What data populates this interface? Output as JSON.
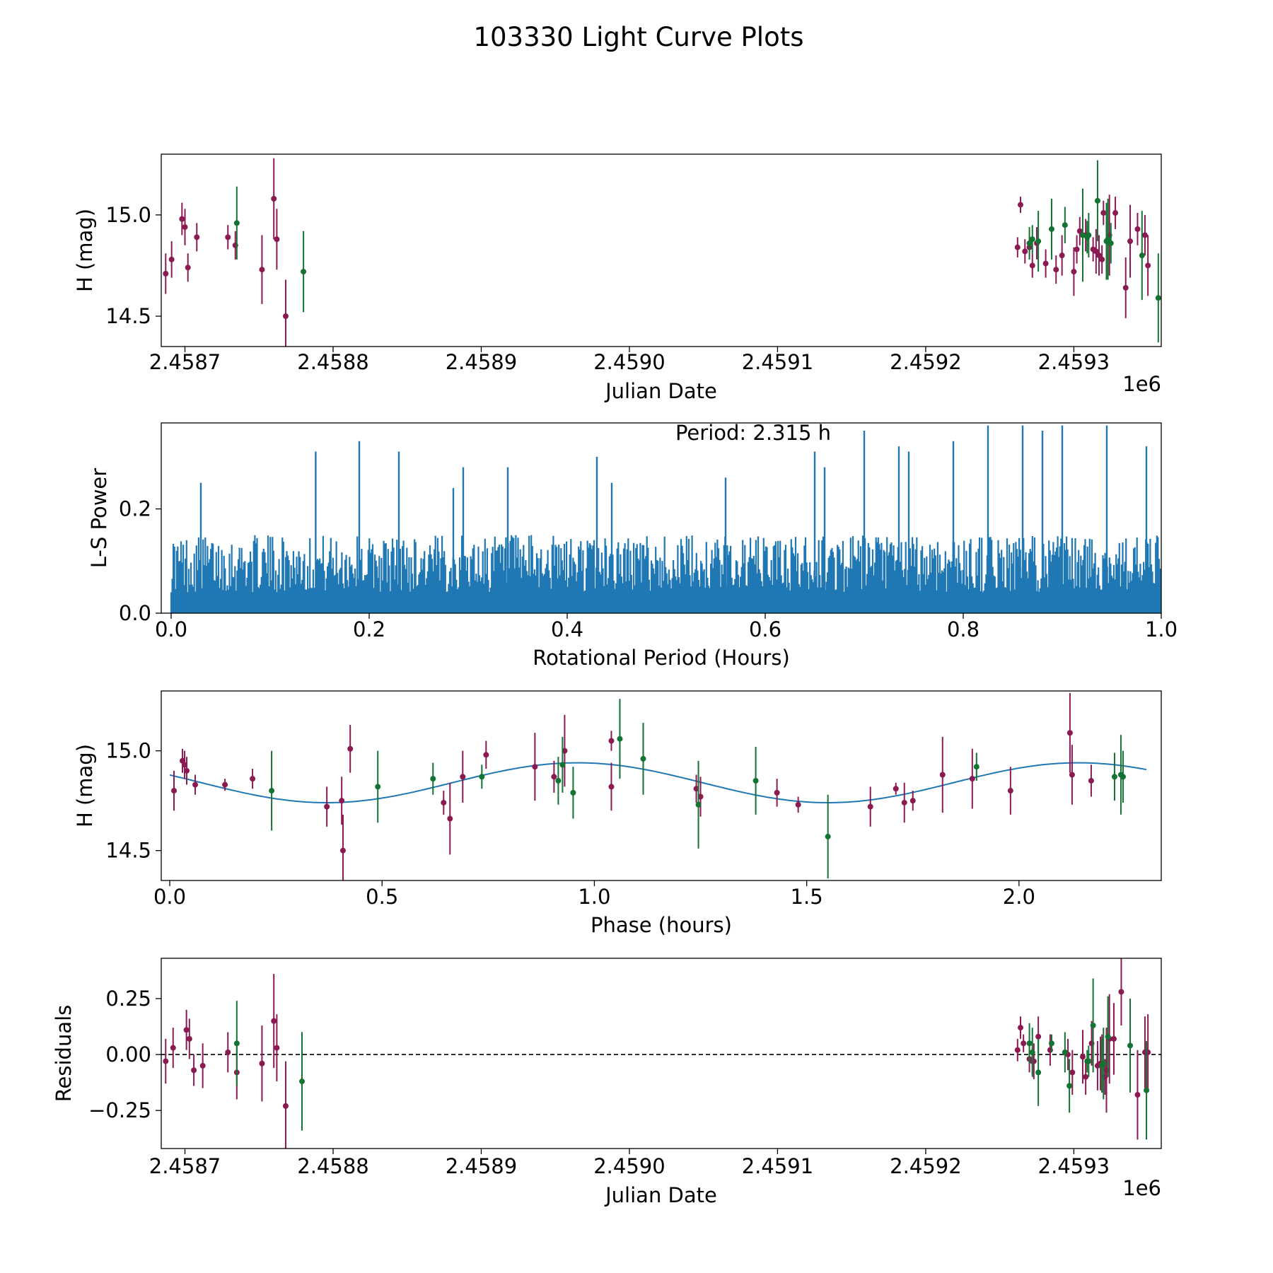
{
  "figure": {
    "title": "103330 Light Curve Plots",
    "colors": {
      "red": "#8c1a52",
      "green": "#127333",
      "fit": "#1f77b4",
      "periodogram": "#1f77b4"
    }
  },
  "chart_data": [
    {
      "id": "lightcurve",
      "type": "scatter",
      "xlabel": "Julian Date",
      "ylabel": "H (mag)",
      "x_offset_label": "1e6",
      "xlim": [
        2.458684,
        2.459359
      ],
      "ylim": [
        14.35,
        15.3
      ],
      "xticks": [
        2.4587,
        2.4588,
        2.4589,
        2.459,
        2.4591,
        2.4592,
        2.4593
      ],
      "xtick_labels": [
        "2.4587",
        "2.4588",
        "2.4589",
        "2.4590",
        "2.4591",
        "2.4592",
        "2.4593"
      ],
      "yticks": [
        14.5,
        15.0
      ],
      "ytick_labels": [
        "14.5",
        "15.0"
      ],
      "series": [
        {
          "name": "red",
          "x": [
            2.458687,
            2.458691,
            2.458698,
            2.4587,
            2.458702,
            2.458708,
            2.458729,
            2.458734,
            2.458752,
            2.45876,
            2.458762,
            2.458768,
            2.459262,
            2.459264,
            2.459267,
            2.45927,
            2.459272,
            2.459275,
            2.459281,
            2.459288,
            2.459292,
            2.4593,
            2.459302,
            2.459304,
            2.459308,
            2.459313,
            2.459315,
            2.459317,
            2.459319,
            2.45932,
            2.459324,
            2.459328,
            2.459335,
            2.459338,
            2.459343,
            2.459348,
            2.45935
          ],
          "y": [
            14.71,
            14.78,
            14.98,
            14.94,
            14.74,
            14.89,
            14.89,
            14.85,
            14.73,
            15.08,
            14.88,
            14.5,
            14.84,
            15.05,
            14.82,
            14.84,
            14.75,
            14.86,
            14.76,
            14.73,
            14.8,
            14.72,
            14.83,
            14.92,
            14.9,
            14.83,
            14.82,
            14.8,
            14.78,
            15.01,
            14.9,
            15.01,
            14.64,
            14.87,
            14.93,
            14.9,
            14.75
          ],
          "err": [
            0.1,
            0.09,
            0.08,
            0.09,
            0.07,
            0.07,
            0.06,
            0.07,
            0.17,
            0.2,
            0.15,
            0.18,
            0.05,
            0.04,
            0.06,
            0.06,
            0.06,
            0.08,
            0.07,
            0.07,
            0.1,
            0.12,
            0.07,
            0.07,
            0.08,
            0.06,
            0.11,
            0.1,
            0.07,
            0.06,
            0.2,
            0.08,
            0.15,
            0.18,
            0.08,
            0.1,
            0.15
          ]
        },
        {
          "name": "green",
          "x": [
            2.458735,
            2.45878,
            2.45927,
            2.459272,
            2.459276,
            2.459285,
            2.459294,
            2.459306,
            2.459309,
            2.45931,
            2.459316,
            2.459322,
            2.459323,
            2.459325,
            2.459346,
            2.459357
          ],
          "y": [
            14.96,
            14.72,
            14.86,
            14.88,
            14.87,
            14.93,
            14.95,
            14.9,
            14.89,
            14.9,
            15.07,
            14.87,
            14.88,
            14.86,
            14.8,
            14.59
          ],
          "err": [
            0.18,
            0.2,
            0.08,
            0.07,
            0.15,
            0.15,
            0.09,
            0.23,
            0.08,
            0.11,
            0.2,
            0.19,
            0.2,
            0.1,
            0.22,
            0.22
          ]
        }
      ]
    },
    {
      "id": "periodogram",
      "type": "line",
      "xlabel": "Rotational Period (Hours)",
      "ylabel": "L-S Power",
      "annotation": "Period: 2.315 h",
      "xlim": [
        -0.01,
        1.0
      ],
      "ylim": [
        0.0,
        0.365
      ],
      "xticks": [
        0.0,
        0.2,
        0.4,
        0.6,
        0.8,
        1.0
      ],
      "xtick_labels": [
        "0.0",
        "0.2",
        "0.4",
        "0.6",
        "0.8",
        "1.0"
      ],
      "yticks": [
        0.0,
        0.2
      ],
      "ytick_labels": [
        "0.0",
        "0.2"
      ],
      "x_range": [
        0.0,
        1.0
      ],
      "num_samples": 900,
      "baseline_power": 0.04,
      "typical_max_power": 0.15,
      "peak_x": [
        0.03,
        0.146,
        0.19,
        0.23,
        0.285,
        0.295,
        0.34,
        0.43,
        0.445,
        0.56,
        0.65,
        0.66,
        0.7,
        0.735,
        0.745,
        0.79,
        0.825,
        0.86,
        0.88,
        0.9,
        0.945,
        0.985
      ],
      "peak_power": [
        0.25,
        0.31,
        0.33,
        0.31,
        0.24,
        0.28,
        0.28,
        0.3,
        0.25,
        0.26,
        0.31,
        0.28,
        0.35,
        0.32,
        0.31,
        0.33,
        0.36,
        0.36,
        0.35,
        0.36,
        0.36,
        0.32
      ]
    },
    {
      "id": "phased",
      "type": "scatter",
      "xlabel": "Phase (hours)",
      "ylabel": "H (mag)",
      "xlim": [
        -0.02,
        2.335
      ],
      "ylim": [
        14.35,
        15.3
      ],
      "xticks": [
        0.0,
        0.5,
        1.0,
        1.5,
        2.0
      ],
      "xtick_labels": [
        "0.0",
        "0.5",
        "1.0",
        "1.5",
        "2.0"
      ],
      "yticks": [
        14.5,
        15.0
      ],
      "ytick_labels": [
        "14.5",
        "15.0"
      ],
      "fit": {
        "period": 1.18,
        "mean": 14.84,
        "amplitude": 0.1,
        "phase_peak": 0.96,
        "x_range": [
          0.0,
          2.3
        ]
      },
      "series": [
        {
          "name": "red",
          "x": [
            0.01,
            0.03,
            0.035,
            0.04,
            0.06,
            0.13,
            0.195,
            0.37,
            0.405,
            0.408,
            0.425,
            0.645,
            0.66,
            0.69,
            0.745,
            0.86,
            0.905,
            0.93,
            1.04,
            1.04,
            1.24,
            1.25,
            1.43,
            1.48,
            1.65,
            1.71,
            1.73,
            1.75,
            1.82,
            1.89,
            1.98,
            2.12,
            2.125,
            2.17
          ],
          "y": [
            14.8,
            14.95,
            14.93,
            14.9,
            14.83,
            14.83,
            14.86,
            14.72,
            14.75,
            14.5,
            15.01,
            14.74,
            14.66,
            14.87,
            14.98,
            14.92,
            14.87,
            15.0,
            14.82,
            15.05,
            14.81,
            14.77,
            14.79,
            14.73,
            14.72,
            14.81,
            14.74,
            14.75,
            14.88,
            14.86,
            14.8,
            15.09,
            14.88,
            14.85
          ],
          "err": [
            0.1,
            0.06,
            0.07,
            0.07,
            0.05,
            0.03,
            0.05,
            0.1,
            0.12,
            0.18,
            0.12,
            0.06,
            0.18,
            0.13,
            0.07,
            0.17,
            0.08,
            0.18,
            0.12,
            0.05,
            0.07,
            0.1,
            0.07,
            0.04,
            0.1,
            0.03,
            0.1,
            0.05,
            0.19,
            0.15,
            0.12,
            0.2,
            0.15,
            0.08
          ]
        },
        {
          "name": "green",
          "x": [
            0.24,
            0.49,
            0.62,
            0.735,
            0.915,
            0.925,
            0.95,
            1.06,
            1.115,
            1.245,
            1.38,
            1.55,
            1.9,
            2.225,
            2.24,
            2.245
          ],
          "y": [
            14.8,
            14.82,
            14.86,
            14.87,
            14.85,
            14.93,
            14.79,
            15.06,
            14.96,
            14.73,
            14.85,
            14.57,
            14.92,
            14.87,
            14.88,
            14.87
          ],
          "err": [
            0.2,
            0.18,
            0.08,
            0.06,
            0.12,
            0.14,
            0.13,
            0.2,
            0.18,
            0.22,
            0.17,
            0.21,
            0.07,
            0.12,
            0.2,
            0.13
          ]
        }
      ]
    },
    {
      "id": "residuals",
      "type": "scatter",
      "xlabel": "Julian Date",
      "ylabel": "Residuals",
      "x_offset_label": "1e6",
      "xlim": [
        2.458684,
        2.459359
      ],
      "ylim": [
        -0.42,
        0.43
      ],
      "xticks": [
        2.4587,
        2.4588,
        2.4589,
        2.459,
        2.4591,
        2.4592,
        2.4593
      ],
      "xtick_labels": [
        "2.4587",
        "2.4588",
        "2.4589",
        "2.4590",
        "2.4591",
        "2.4592",
        "2.4593"
      ],
      "yticks": [
        -0.25,
        0.0,
        0.25
      ],
      "ytick_labels": [
        "−0.25",
        "0.00",
        "0.25"
      ],
      "reference_line": 0.0,
      "series": [
        {
          "name": "red",
          "x": [
            2.458687,
            2.458692,
            2.458701,
            2.458703,
            2.458706,
            2.458712,
            2.458729,
            2.458735,
            2.458752,
            2.45876,
            2.458762,
            2.458768,
            2.459262,
            2.459264,
            2.459266,
            2.45927,
            2.459272,
            2.459273,
            2.459276,
            2.459284,
            2.459296,
            2.459299,
            2.459306,
            2.459308,
            2.459312,
            2.459316,
            2.459318,
            2.459319,
            2.459321,
            2.459322,
            2.459324,
            2.459327,
            2.459332,
            2.459343,
            2.459348,
            2.45935
          ],
          "y": [
            -0.03,
            0.03,
            0.11,
            0.07,
            -0.07,
            -0.05,
            0.01,
            -0.08,
            -0.04,
            0.15,
            0.03,
            -0.23,
            0.02,
            0.12,
            0.05,
            -0.02,
            -0.03,
            -0.03,
            0.08,
            0.02,
            0.0,
            -0.08,
            -0.01,
            -0.1,
            0.05,
            -0.05,
            -0.04,
            -0.04,
            -0.1,
            -0.07,
            0.07,
            0.07,
            0.28,
            -0.18,
            0.01,
            0.01
          ],
          "err": [
            0.1,
            0.09,
            0.09,
            0.09,
            0.07,
            0.1,
            0.09,
            0.12,
            0.17,
            0.21,
            0.15,
            0.2,
            0.05,
            0.05,
            0.04,
            0.06,
            0.06,
            0.08,
            0.09,
            0.07,
            0.07,
            0.1,
            0.12,
            0.08,
            0.1,
            0.11,
            0.12,
            0.13,
            0.08,
            0.19,
            0.2,
            0.16,
            0.15,
            0.2,
            0.16,
            0.17
          ]
        },
        {
          "name": "green",
          "x": [
            2.458735,
            2.458779,
            2.45927,
            2.459272,
            2.459276,
            2.459285,
            2.459294,
            2.459297,
            2.459309,
            2.45931,
            2.459313,
            2.459319,
            2.45932,
            2.459323,
            2.459338,
            2.459349
          ],
          "y": [
            0.05,
            -0.12,
            0.05,
            0.01,
            -0.08,
            0.05,
            0.01,
            -0.14,
            -0.03,
            -0.03,
            0.13,
            -0.05,
            -0.04,
            0.08,
            0.04,
            -0.16
          ],
          "err": [
            0.19,
            0.22,
            0.09,
            0.11,
            0.15,
            0.04,
            0.09,
            0.12,
            0.05,
            0.07,
            0.21,
            0.12,
            0.16,
            0.18,
            0.21,
            0.22
          ]
        }
      ]
    }
  ]
}
